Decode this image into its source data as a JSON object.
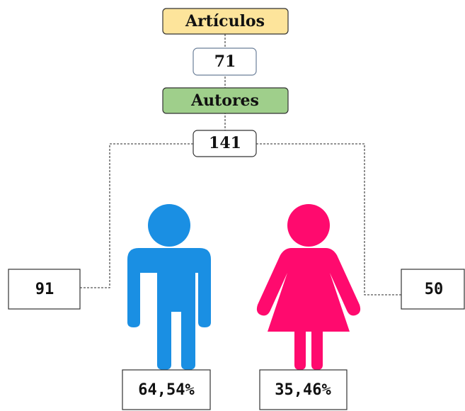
{
  "top": {
    "label": "Artículos",
    "count": "71"
  },
  "middle": {
    "label": "Autores",
    "count": "141"
  },
  "male": {
    "count": "91",
    "percent": "64,54%"
  },
  "female": {
    "count": "50",
    "percent": "35,46%"
  }
}
